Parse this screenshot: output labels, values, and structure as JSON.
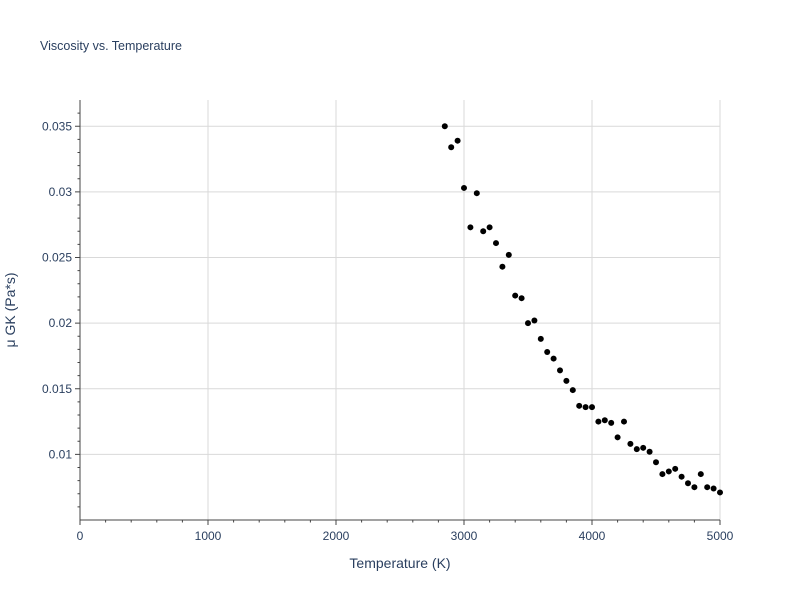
{
  "chart_data": {
    "type": "scatter",
    "title": "Viscosity vs. Temperature",
    "xlabel": "Temperature (K)",
    "ylabel": "μ GK (Pa*s)",
    "xlim": [
      0,
      5000
    ],
    "ylim": [
      0.005,
      0.037
    ],
    "x_ticks": [
      0,
      1000,
      2000,
      3000,
      4000,
      5000
    ],
    "x_tick_labels": [
      "0",
      "1000",
      "2000",
      "3000",
      "4000",
      "5000"
    ],
    "y_ticks": [
      0.01,
      0.015,
      0.02,
      0.025,
      0.03,
      0.035
    ],
    "y_tick_labels": [
      "0.01",
      "0.015",
      "0.02",
      "0.025",
      "0.03",
      "0.035"
    ],
    "grid": true,
    "marker_color": "#000000",
    "x": [
      2850,
      2900,
      2950,
      3000,
      3050,
      3100,
      3150,
      3200,
      3250,
      3300,
      3350,
      3400,
      3450,
      3500,
      3550,
      3600,
      3650,
      3700,
      3750,
      3800,
      3850,
      3900,
      3950,
      4000,
      4050,
      4100,
      4150,
      4200,
      4250,
      4300,
      4350,
      4400,
      4450,
      4500,
      4550,
      4600,
      4650,
      4700,
      4750,
      4800,
      4850,
      4900,
      4950,
      5000
    ],
    "y": [
      0.035,
      0.0334,
      0.0339,
      0.0303,
      0.0273,
      0.0299,
      0.027,
      0.0273,
      0.0261,
      0.0243,
      0.0252,
      0.0221,
      0.0219,
      0.02,
      0.0202,
      0.0188,
      0.0178,
      0.0173,
      0.0164,
      0.0156,
      0.0149,
      0.0137,
      0.0136,
      0.0136,
      0.0125,
      0.0126,
      0.0124,
      0.0113,
      0.0125,
      0.0108,
      0.0104,
      0.0105,
      0.0102,
      0.0094,
      0.0085,
      0.0087,
      0.0089,
      0.0083,
      0.0078,
      0.0075,
      0.0085,
      0.0075,
      0.0074,
      0.0071
    ]
  }
}
